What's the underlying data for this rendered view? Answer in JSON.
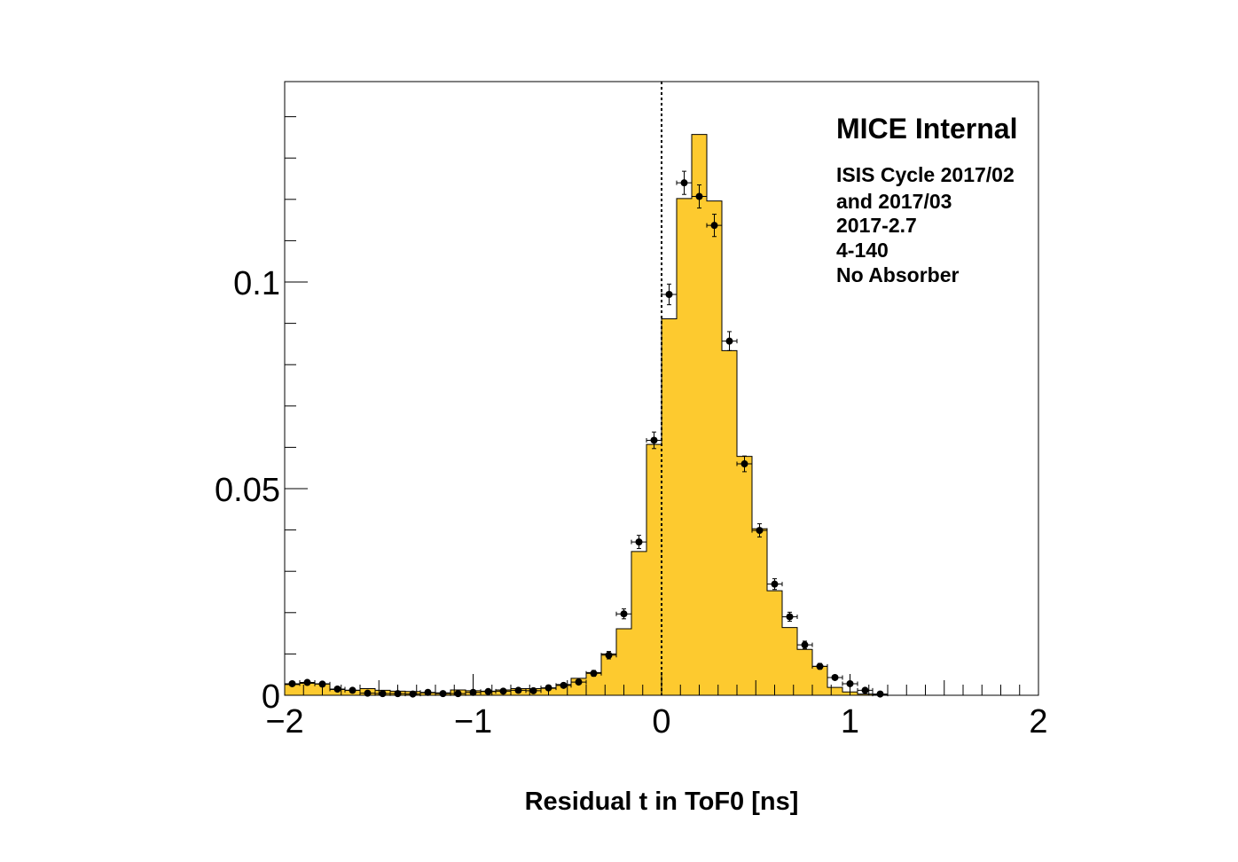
{
  "chart_data": {
    "type": "bar",
    "xlabel": "Residual t in ToF0 [ns]",
    "ylabel": "",
    "xlim": [
      -2,
      2
    ],
    "ylim": [
      0,
      0.1485
    ],
    "x_ticks": [
      -2,
      -1,
      0,
      1,
      2
    ],
    "x_tick_labels": [
      "−2",
      "−1",
      "0",
      "1",
      "2"
    ],
    "y_ticks": [
      0,
      0.05,
      0.1
    ],
    "y_tick_labels": [
      "0",
      "0.05",
      "0.1"
    ],
    "bin_width": 0.08,
    "vertical_line_x": 0,
    "annotation": {
      "title": "MICE Internal",
      "lines": [
        "ISIS Cycle 2017/02",
        "and 2017/03",
        "2017-2.7",
        "4-140",
        "No Absorber"
      ]
    },
    "colors": {
      "histogram_fill": "#fdca2f",
      "histogram_line": "#000000",
      "points": "#000000"
    },
    "series": [
      {
        "type": "histogram",
        "bin_edges": [
          -2.0,
          -1.92,
          -1.84,
          -1.76,
          -1.68,
          -1.6,
          -1.52,
          -1.44,
          -1.36,
          -1.28,
          -1.2,
          -1.12,
          -1.04,
          -0.96,
          -0.88,
          -0.8,
          -0.72,
          -0.64,
          -0.56,
          -0.48,
          -0.4,
          -0.32,
          -0.24,
          -0.16,
          -0.08,
          0.0,
          0.08,
          0.16,
          0.24,
          0.32,
          0.4,
          0.48,
          0.56,
          0.64,
          0.72,
          0.8,
          0.88,
          0.96,
          1.04,
          1.12,
          1.2
        ],
        "values": [
          0.0026,
          0.0029,
          0.0028,
          0.0014,
          0.0012,
          0.0016,
          0.0012,
          0.001,
          0.0009,
          0.0006,
          0.0006,
          0.0013,
          0.0011,
          0.001,
          0.0013,
          0.0016,
          0.0016,
          0.0017,
          0.0026,
          0.0041,
          0.0055,
          0.01,
          0.0161,
          0.0348,
          0.0607,
          0.0911,
          0.1202,
          0.1357,
          0.1196,
          0.0834,
          0.0578,
          0.0403,
          0.0253,
          0.0164,
          0.0111,
          0.007,
          0.0019,
          0.0008,
          0.0003,
          0.0001
        ]
      },
      {
        "type": "points_with_errors",
        "x": [
          -1.96,
          -1.88,
          -1.8,
          -1.72,
          -1.64,
          -1.56,
          -1.48,
          -1.4,
          -1.32,
          -1.24,
          -1.16,
          -1.08,
          -1.0,
          -0.92,
          -0.84,
          -0.76,
          -0.68,
          -0.6,
          -0.52,
          -0.44,
          -0.36,
          -0.28,
          -0.2,
          -0.12,
          -0.04,
          0.04,
          0.12,
          0.2,
          0.28,
          0.36,
          0.44,
          0.52,
          0.6,
          0.68,
          0.76,
          0.84,
          0.92,
          1.0,
          1.08,
          1.16
        ],
        "y": [
          0.0028,
          0.0031,
          0.0027,
          0.0015,
          0.0012,
          0.0005,
          0.0004,
          0.0004,
          0.0003,
          0.0007,
          0.0004,
          0.0004,
          0.0007,
          0.0009,
          0.001,
          0.0012,
          0.0011,
          0.0018,
          0.0024,
          0.0032,
          0.0053,
          0.0097,
          0.0197,
          0.0371,
          0.0617,
          0.097,
          0.124,
          0.1207,
          0.1137,
          0.0857,
          0.056,
          0.0399,
          0.0269,
          0.019,
          0.0122,
          0.007,
          0.0043,
          0.0028,
          0.0012,
          0.0003
        ],
        "y_err": [
          0.0004,
          0.0004,
          0.0004,
          0.0003,
          0.0003,
          0.0002,
          0.0002,
          0.0002,
          0.0002,
          0.0003,
          0.0002,
          0.0002,
          0.0003,
          0.0003,
          0.0003,
          0.0003,
          0.0003,
          0.0004,
          0.0005,
          0.0005,
          0.0007,
          0.0009,
          0.0012,
          0.0016,
          0.002,
          0.0025,
          0.0028,
          0.0028,
          0.0027,
          0.0023,
          0.0019,
          0.0016,
          0.0013,
          0.0011,
          0.0009,
          0.0007,
          0.0005,
          0.0004,
          0.0003,
          0.0002
        ],
        "x_err": 0.04
      }
    ]
  }
}
